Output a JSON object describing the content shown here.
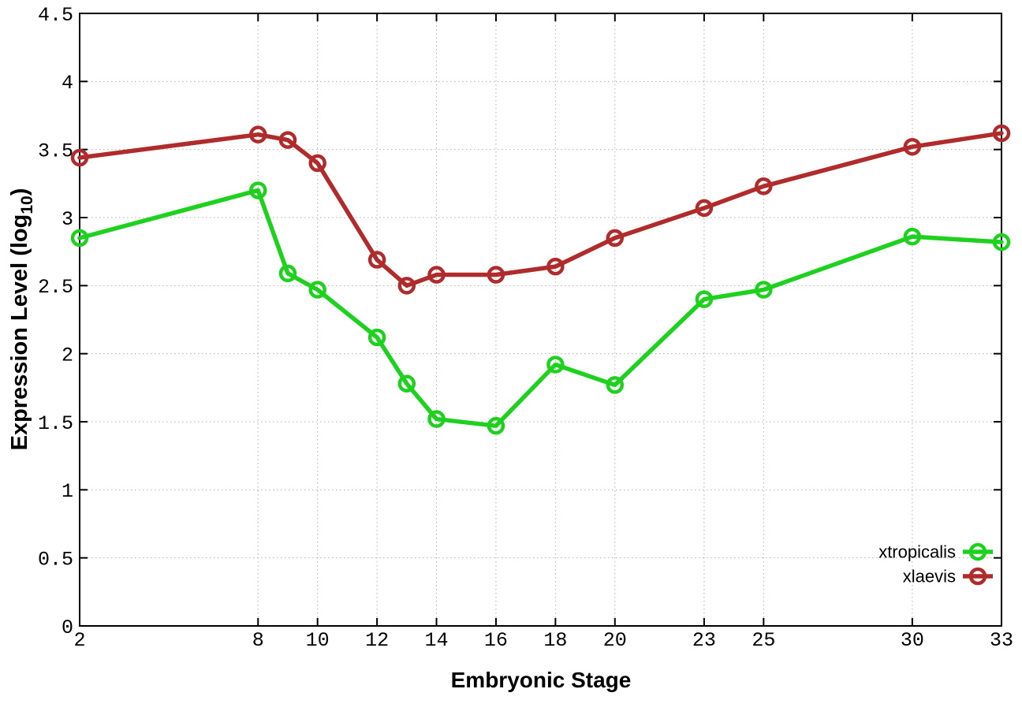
{
  "chart_data": {
    "type": "line",
    "title": "",
    "xlabel": "Embryonic Stage",
    "ylabel": "Expression Level (log10)",
    "ylabel_prefix": "Expression Level (log",
    "ylabel_subscript": "10",
    "ylabel_suffix": ")",
    "x": [
      2,
      8,
      9,
      10,
      12,
      13,
      14,
      16,
      18,
      20,
      23,
      25,
      30,
      33
    ],
    "series": [
      {
        "name": "xtropicalis",
        "color": "#1fd11f",
        "marker": "open-circle",
        "values": [
          2.85,
          3.2,
          2.59,
          2.47,
          2.12,
          1.78,
          1.52,
          1.47,
          1.92,
          1.77,
          2.4,
          2.47,
          2.86,
          2.82
        ]
      },
      {
        "name": "xlaevis",
        "color": "#b02b2b",
        "marker": "open-circle",
        "values": [
          3.44,
          3.61,
          3.57,
          3.4,
          2.69,
          2.5,
          2.58,
          2.58,
          2.64,
          2.85,
          3.07,
          3.23,
          3.52,
          3.62
        ]
      }
    ],
    "xticks": [
      2,
      8,
      10,
      12,
      14,
      16,
      18,
      20,
      23,
      25,
      30,
      33
    ],
    "yticks": [
      0,
      0.5,
      1,
      1.5,
      2,
      2.5,
      3,
      3.5,
      4,
      4.5
    ],
    "xlim": [
      2,
      33
    ],
    "ylim": [
      0,
      4.5
    ],
    "grid": true,
    "legend_position": "bottom-right"
  },
  "colors": {
    "background": "#ffffff",
    "axis": "#000000",
    "grid": "#b0b0b0",
    "text": "#000000",
    "series_green": "#1fd11f",
    "series_dark_red": "#b02b2b"
  }
}
